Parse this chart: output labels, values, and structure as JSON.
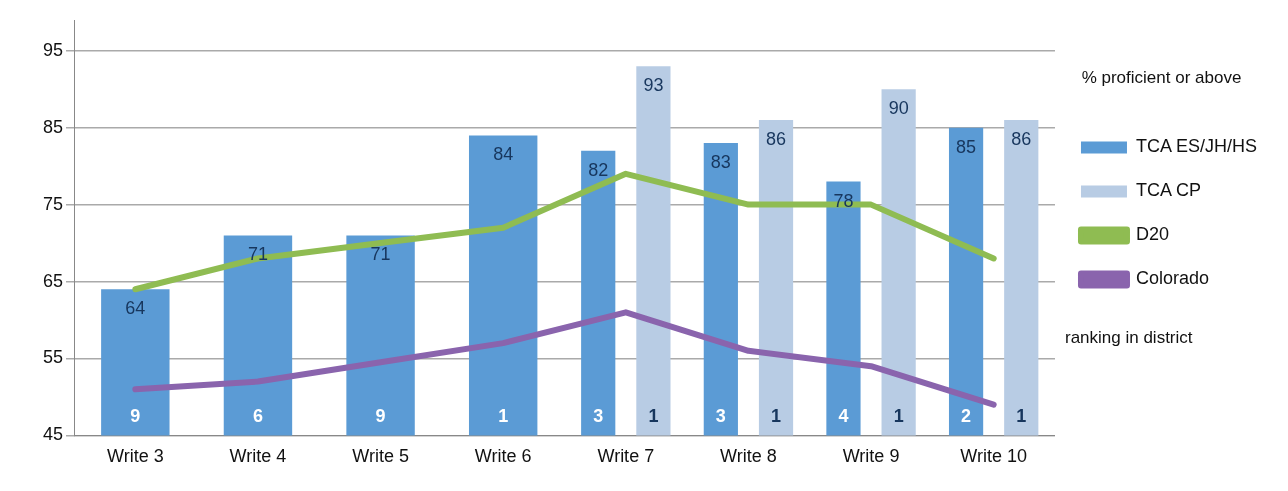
{
  "chart_data": {
    "type": "bar",
    "legend_title": "% proficient or above",
    "categories": [
      "Write 3",
      "Write 4",
      "Write 5",
      "Write 6",
      "Write 7",
      "Write 8",
      "Write 9",
      "Write 10"
    ],
    "series": [
      {
        "name": "TCA ES/JH/HS",
        "color": "#5b9bd5",
        "values": [
          64,
          71,
          71,
          84,
          82,
          83,
          78,
          85
        ],
        "value_labels": [
          "64",
          "71",
          "71",
          "84",
          "82",
          "83",
          "78",
          "85"
        ]
      },
      {
        "name": "TCA CP",
        "color": "#b8cce4",
        "values": [
          null,
          null,
          null,
          null,
          93,
          86,
          90,
          86
        ],
        "value_labels": [
          null,
          null,
          null,
          null,
          "93",
          "86",
          "90",
          "86"
        ]
      },
      {
        "name": "D20",
        "type": "line",
        "color": "#8fbc52",
        "values": [
          64,
          68,
          70,
          72,
          79,
          75,
          75,
          68
        ]
      },
      {
        "name": "Colorado",
        "type": "line",
        "color": "#8a64ad",
        "values": [
          51,
          52,
          54.5,
          57,
          61,
          56,
          54,
          49
        ]
      }
    ],
    "ylim": [
      45,
      99
    ],
    "yticks": [
      45,
      55,
      65,
      75,
      85,
      95
    ],
    "grid": "y",
    "legend": "right",
    "marker": "none",
    "line_style": "solid",
    "annotations": [
      "ranking in district",
      "9",
      "6",
      "9",
      "1",
      "3",
      "1",
      "3",
      "1",
      "4",
      "1",
      "2",
      "1"
    ]
  }
}
